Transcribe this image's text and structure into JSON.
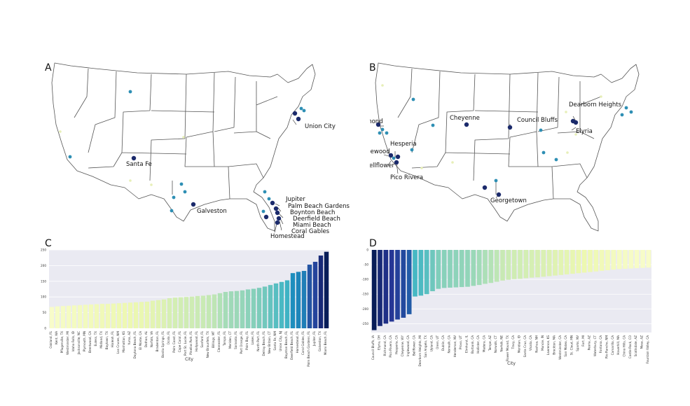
{
  "panels": {
    "a": {
      "letter": "A"
    },
    "b": {
      "letter": "B"
    },
    "c": {
      "letter": "C"
    },
    "d": {
      "letter": "D"
    }
  },
  "maps": [
    {
      "panel": "A",
      "labels": [
        "Union City",
        "Santa Fe",
        "Galveston",
        "Jupiter",
        "Palm Beach Gardens",
        "Boynton Beach",
        "Deerfield Beach",
        "Miami Beach",
        "Coral Gables",
        "Homestead"
      ],
      "colors": {
        "dark": "#1b2a6b",
        "mid": "#2e8fb4",
        "light": "#e7efb8"
      }
    },
    {
      "panel": "B",
      "labels": [
        "Dearborn Heights",
        "Cheyenne",
        "Council Bluffs",
        "Richmond",
        "Elyria",
        "Hesperia",
        "Inglewood",
        "Bellflower",
        "Pico Rivera",
        "Georgetown"
      ],
      "colors": {
        "dark": "#1b2a6b",
        "mid": "#2e8fb4",
        "light": "#e7efb8"
      }
    }
  ],
  "chart_data": [
    {
      "panel": "C",
      "type": "bar",
      "xlabel": "City",
      "ylabel": "Rank difference",
      "ylim": [
        0,
        250
      ],
      "yticks": [
        0,
        50,
        100,
        150,
        200,
        250
      ],
      "grid": true,
      "colormap": "YlGnBu",
      "categories": [
        "Oakland, FL",
        "Kent, WA",
        "Pflugerville, TX",
        "Westminster, MI",
        "Idaho Falls, ID",
        "Jacksonville, NC",
        "Plymouth, MN",
        "Brentwood, CA",
        "Euless, TX",
        "Midland, TX",
        "Baytown, TX",
        "Hialeah, FL",
        "Las Cruces, NM",
        "Manhattan, KS",
        "Yuma, AZ",
        "Daytona Beach, FL",
        "El Monte, CA",
        "Dothan, AL",
        "Norfolk, VA",
        "Bradenton, FL",
        "Bonita Springs, FL",
        "Ocala, FL",
        "Palm Coast, FL",
        "Cape Coral, FL",
        "Port St. Lucie, FL",
        "Pinellas Park, FL",
        "Hollywood, FL",
        "Sanford, FL",
        "New Braunfels, TX",
        "Billings, MT",
        "Clearwater, FL",
        "Tampa, FL",
        "Meriden, CT",
        "Sarasota, FL",
        "Port Orange, FL",
        "Palm Bay, FL",
        "Lakes, FL",
        "North Port, FL",
        "Delray Beach, FL",
        "New Britain, CT",
        "Santa Fe, NM",
        "Union City, NJ",
        "Boynton Beach, FL",
        "Deerfield Beach, FL",
        "Homestead, FL",
        "Coral Gables, FL",
        "Palm Beach Gardens, FL",
        "Jupiter, FL",
        "Galveston, TX",
        "Miami Beach, FL"
      ],
      "values": [
        68,
        70,
        71,
        72,
        73,
        74,
        75,
        76,
        77,
        78,
        78,
        79,
        80,
        81,
        82,
        83,
        84,
        85,
        88,
        90,
        92,
        96,
        98,
        99,
        100,
        101,
        103,
        104,
        106,
        108,
        112,
        116,
        118,
        119,
        121,
        124,
        126,
        129,
        133,
        138,
        143,
        148,
        153,
        176,
        180,
        183,
        203,
        212,
        232,
        244
      ],
      "values_note_unused": ""
    },
    {
      "panel": "D",
      "type": "bar",
      "xlabel": "City",
      "ylabel": "Rank difference",
      "ylim": [
        -280,
        0
      ],
      "yticks": [
        0,
        -50,
        -100,
        -150,
        -200,
        -250
      ],
      "grid": true,
      "colormap": "YlGnBu",
      "categories": [
        "Council Bluffs, IA",
        "Elyria, OH",
        "Richmond, CA",
        "Pico Rivera, CA",
        "Hesperia, CA",
        "Cheyenne, WY",
        "Inglewood, CA",
        "Bellflower, CA",
        "Dearborn Heights, MI",
        "San Angelo, TX",
        "Upland, CA",
        "Orem, UT",
        "Dublin, CA",
        "Norwalk, CA",
        "Henderson, NV",
        "Provo, UT",
        "Elmhurst, IL",
        "Burbank, CA",
        "Hollister, CA",
        "Madera, CA",
        "Tempe, AZ",
        "Norwalk, CT",
        "Norfolk, NE",
        "Flower Mound, TX",
        "Tracy, CA",
        "Meridian, ID",
        "Santa Cruz, CA",
        "Visalia, CA",
        "Nashua, NH",
        "Muncie, IN",
        "Lawrence, KS",
        "Brockton, MA",
        "Westminster, CA",
        "San Mateo, CA",
        "St. Cloud, MN",
        "Sparks, NV",
        "Fort, MI",
        "Peoria, AZ",
        "Waterbury, CT",
        "Fontana, CA",
        "Rio Rancho, NM",
        "Camarillo, CA",
        "Haverhill, MA",
        "Chino Hills, CA",
        "Castle Rock, CO",
        "Scottsdale, AZ",
        "Mesa, AZ",
        "Fountain Valley, CA"
      ],
      "values": [
        -272,
        -258,
        -250,
        -243,
        -236,
        -230,
        -218,
        -158,
        -155,
        -150,
        -140,
        -132,
        -129,
        -128,
        -127,
        -126,
        -125,
        -122,
        -119,
        -115,
        -112,
        -108,
        -104,
        -101,
        -99,
        -98,
        -96,
        -94,
        -93,
        -91,
        -89,
        -87,
        -85,
        -83,
        -81,
        -79,
        -77,
        -75,
        -73,
        -71,
        -69,
        -67,
        -65,
        -64,
        -63,
        -62,
        -61,
        -60
      ]
    }
  ]
}
